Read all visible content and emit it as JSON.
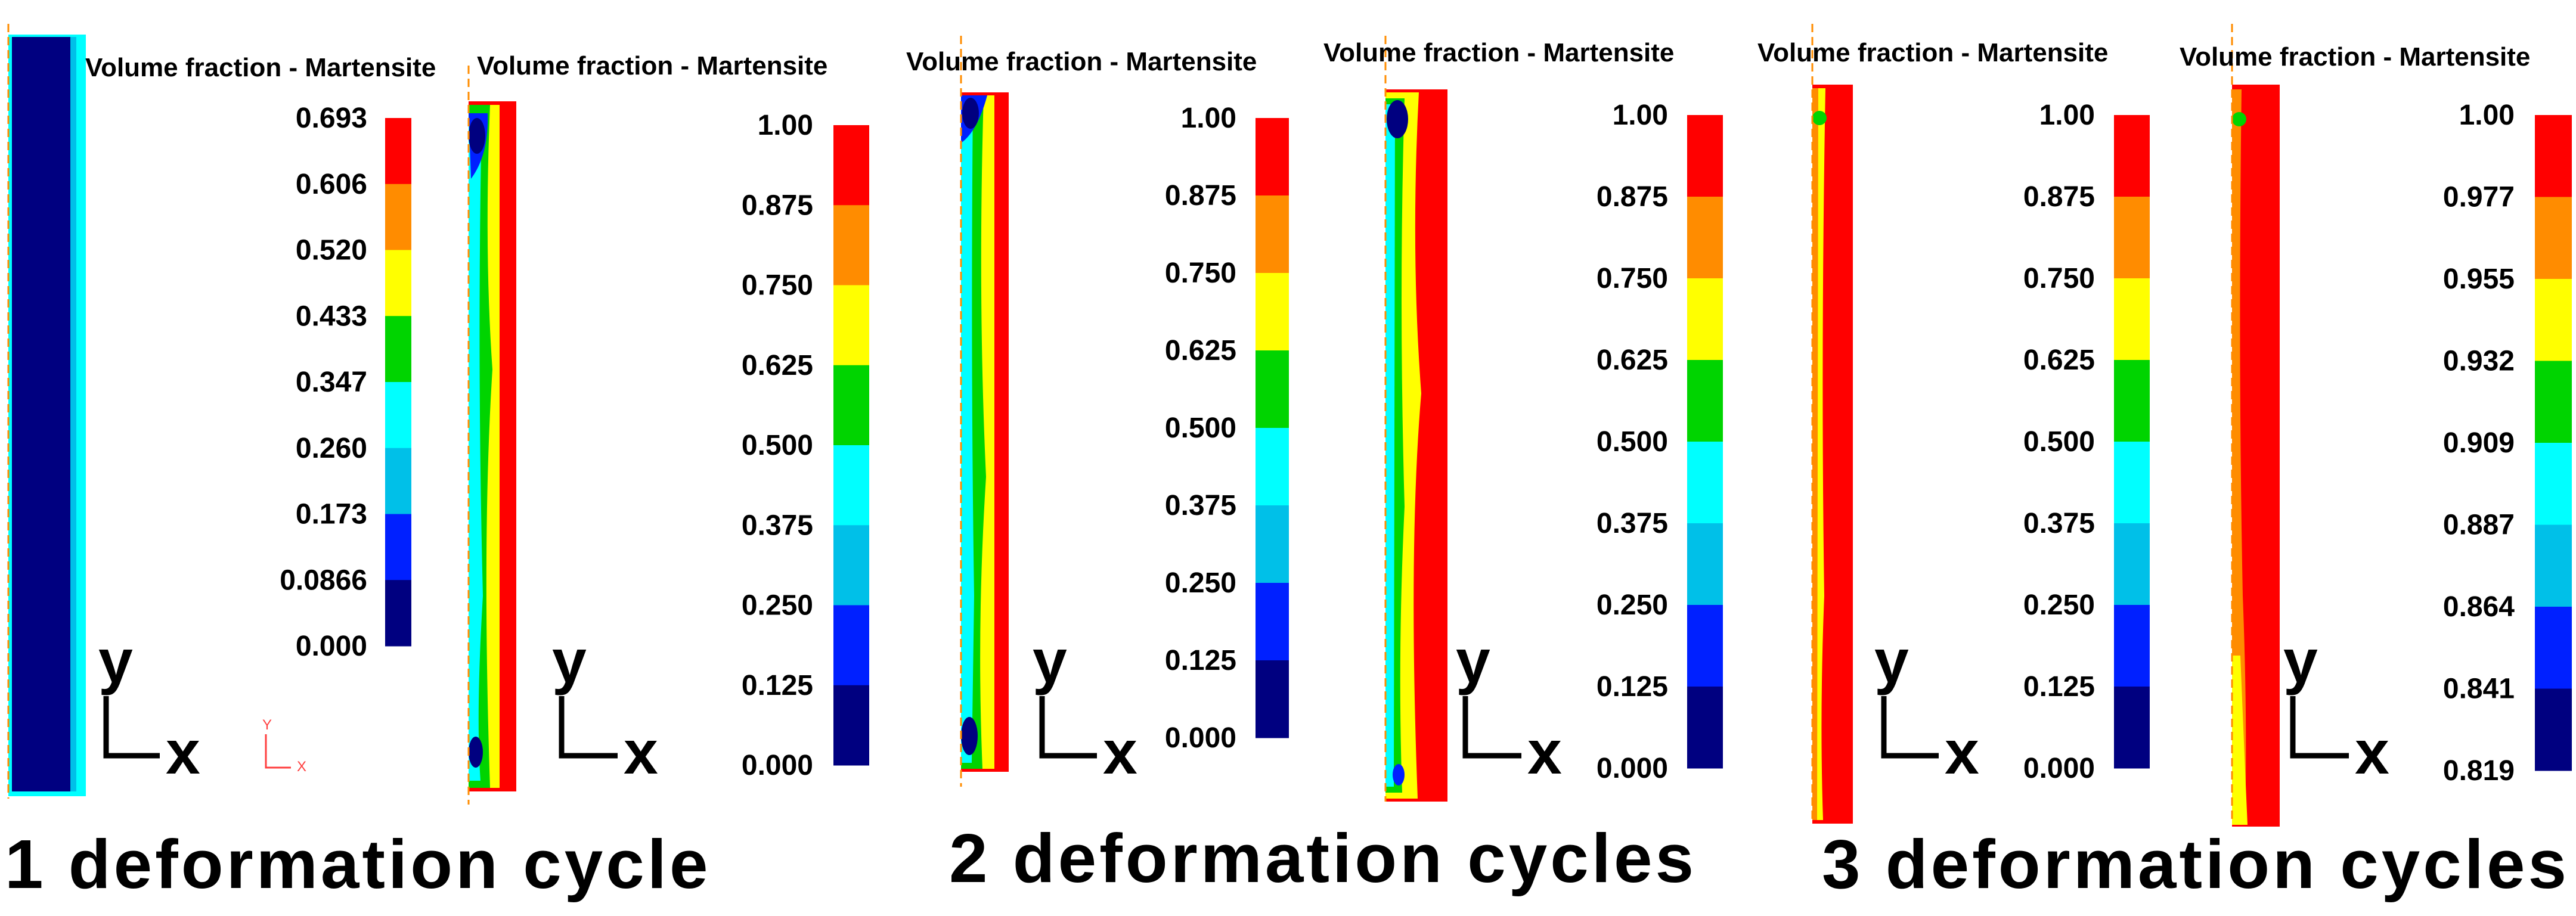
{
  "figure": {
    "scale_colors": [
      "#ff0000",
      "#ff8c00",
      "#ffff00",
      "#00d400",
      "#00ffff",
      "#00c0e8",
      "#0020ff",
      "#000080"
    ],
    "fields": [
      {
        "title": "Volume fraction - Martensite",
        "ticks": [
          "0.693",
          "0.606",
          "0.520",
          "0.433",
          "0.347",
          "0.260",
          "0.173",
          "0.0866",
          "0.000"
        ]
      },
      {
        "title": "Volume fraction - Martensite",
        "ticks": [
          "1.00",
          "0.875",
          "0.750",
          "0.625",
          "0.500",
          "0.375",
          "0.250",
          "0.125",
          "0.000"
        ]
      },
      {
        "title": "Volume fraction - Martensite",
        "ticks": [
          "1.00",
          "0.875",
          "0.750",
          "0.625",
          "0.500",
          "0.375",
          "0.250",
          "0.125",
          "0.000"
        ]
      },
      {
        "title": "Volume fraction - Martensite",
        "ticks": [
          "1.00",
          "0.875",
          "0.750",
          "0.625",
          "0.500",
          "0.375",
          "0.250",
          "0.125",
          "0.000"
        ]
      },
      {
        "title": "Volume fraction - Martensite",
        "ticks": [
          "1.00",
          "0.875",
          "0.750",
          "0.625",
          "0.500",
          "0.375",
          "0.250",
          "0.125",
          "0.000"
        ]
      },
      {
        "title": "Volume fraction - Martensite",
        "ticks": [
          "1.00",
          "0.977",
          "0.955",
          "0.932",
          "0.909",
          "0.887",
          "0.864",
          "0.841",
          "0.819"
        ]
      }
    ],
    "axes": {
      "y": "y",
      "x": "x"
    },
    "mini_triad": {
      "y": "Y",
      "x": "X"
    },
    "captions": [
      "1 deformation cycle",
      "2 deformation cycles",
      "3 deformation cycles"
    ]
  }
}
